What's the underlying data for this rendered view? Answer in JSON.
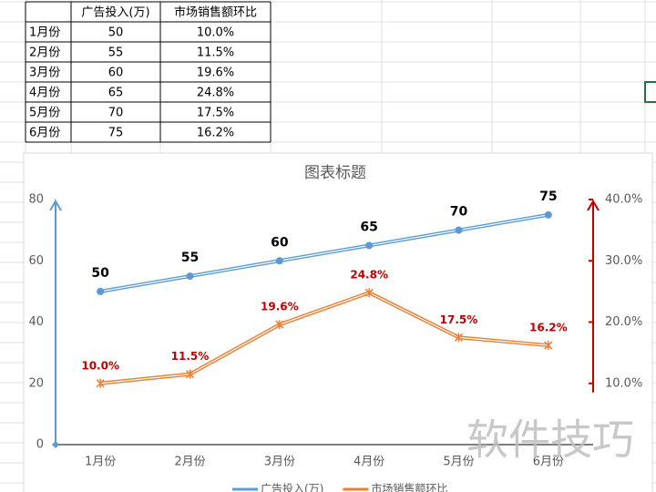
{
  "table": {
    "header": [
      "广告投入(万)",
      "市场销售额环比"
    ],
    "rows": [
      [
        "1月份",
        "50",
        "10.0%"
      ],
      [
        "2月份",
        "55",
        "11.5%"
      ],
      [
        "3月份",
        "60",
        "19.6%"
      ],
      [
        "4月份",
        "65",
        "24.8%"
      ],
      [
        "5月份",
        "70",
        "17.5%"
      ],
      [
        "6月份",
        "75",
        "16.2%"
      ]
    ]
  },
  "chart_data": {
    "type": "line",
    "title": "图表标题",
    "categories": [
      "1月份",
      "2月份",
      "3月份",
      "4月份",
      "5月份",
      "6月份"
    ],
    "series": [
      {
        "name": "广告投入(万)",
        "color": "#5b9bd5",
        "values": [
          50,
          55,
          60,
          65,
          70,
          75
        ]
      },
      {
        "name": "市场销售额环比",
        "color": "#ed7d31",
        "axis": "y2",
        "values": [
          10.0,
          11.5,
          19.6,
          24.8,
          17.5,
          16.2
        ],
        "value_labels": [
          "10.0%",
          "11.5%",
          "19.6%",
          "24.8%",
          "17.5%",
          "16.2%"
        ]
      }
    ],
    "ylim": [
      0,
      80
    ],
    "yticks": [
      0,
      20,
      40,
      60,
      80
    ],
    "y2lim": [
      0,
      40
    ],
    "y2ticks": [
      {
        "value": 10,
        "label": "10.0%"
      },
      {
        "value": 20,
        "label": "20.0%"
      },
      {
        "value": 30,
        "label": "30.0%"
      },
      {
        "value": 40,
        "label": "40.0%"
      }
    ],
    "grid": false,
    "legend": "bottom"
  },
  "watermark": "软件技巧"
}
